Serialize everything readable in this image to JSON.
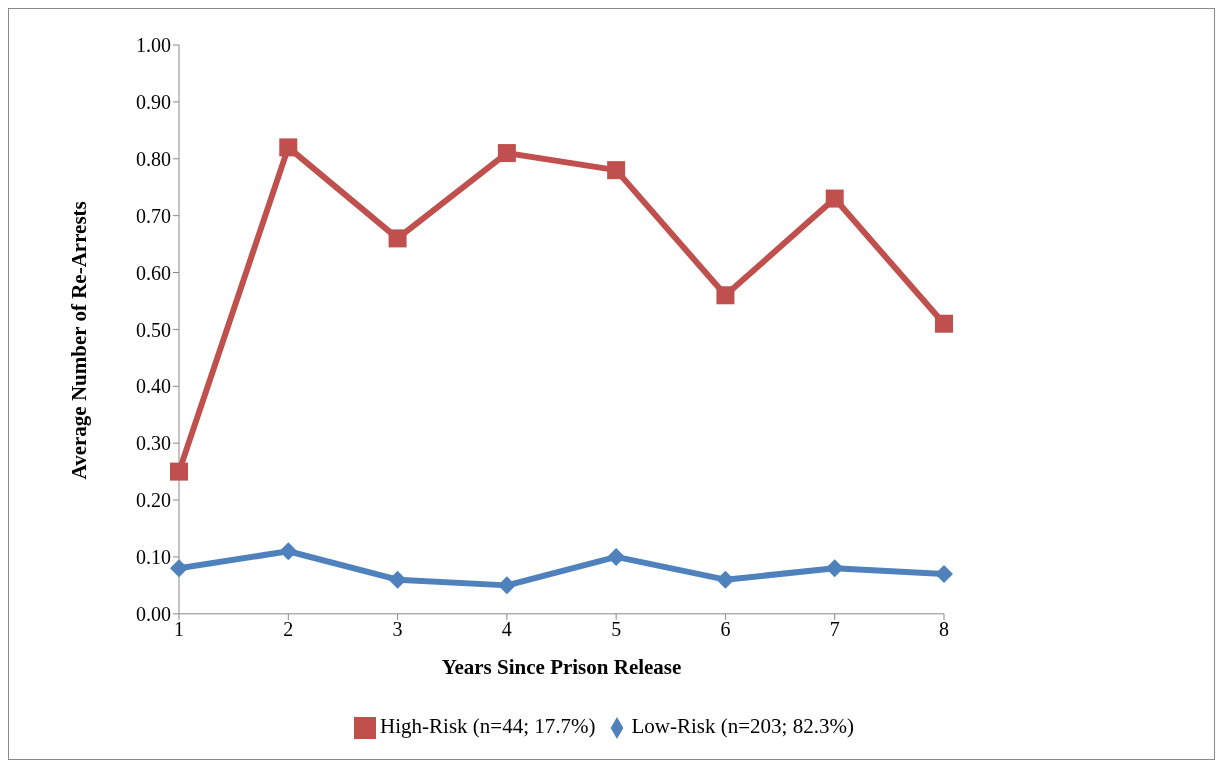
{
  "chart_data": {
    "type": "line",
    "xlabel": "Years Since Prison Release",
    "ylabel": "Average Number of Re-Arrests",
    "categories": [
      "1",
      "2",
      "3",
      "4",
      "5",
      "6",
      "7",
      "8"
    ],
    "series": [
      {
        "name": "Low-Risk (n=203; 82.3%)",
        "color": "#4f81bd",
        "marker": "diamond",
        "values": [
          0.08,
          0.11,
          0.06,
          0.05,
          0.1,
          0.06,
          0.08,
          0.07
        ]
      },
      {
        "name": "High-Risk (n=44; 17.7%)",
        "color": "#c0504d",
        "marker": "square",
        "values": [
          0.25,
          0.82,
          0.66,
          0.81,
          0.78,
          0.56,
          0.73,
          0.51
        ]
      }
    ],
    "ylim": [
      0,
      1
    ],
    "yticks": [
      {
        "value": 0,
        "label": "0.00"
      },
      {
        "value": 0.1,
        "label": "0.10"
      },
      {
        "value": 0.2,
        "label": "0.20"
      },
      {
        "value": 0.3,
        "label": "0.30"
      },
      {
        "value": 0.4,
        "label": "0.40"
      },
      {
        "value": 0.5,
        "label": "0.50"
      },
      {
        "value": 0.6,
        "label": "0.60"
      },
      {
        "value": 0.7,
        "label": "0.70"
      },
      {
        "value": 0.8,
        "label": "0.80"
      },
      {
        "value": 0.9,
        "label": "0.90"
      },
      {
        "value": 1,
        "label": "1.00"
      }
    ],
    "grid": false,
    "legend": "bottom",
    "line_style": "solid"
  }
}
